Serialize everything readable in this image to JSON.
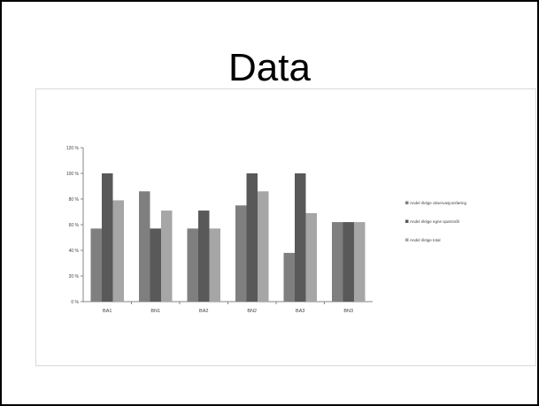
{
  "slide": {
    "title": "Data"
  },
  "chart_data": {
    "type": "bar",
    "categories": [
      "BA1",
      "BN1",
      "BA2",
      "BN2",
      "BA3",
      "BN3"
    ],
    "series": [
      {
        "name": "Andel riktige observasjonsføring",
        "color": "#7f7f7f",
        "values": [
          57,
          86,
          57,
          75,
          38,
          62
        ]
      },
      {
        "name": "Andel riktige egne spørsmål",
        "color": "#595959",
        "values": [
          100,
          57,
          71,
          100,
          100,
          62
        ]
      },
      {
        "name": "Andel riktige total",
        "color": "#a6a6a6",
        "values": [
          79,
          71,
          57,
          86,
          69,
          62
        ]
      }
    ],
    "yticks": [
      "0 %",
      "20 %",
      "40 %",
      "60 %",
      "80 %",
      "100 %",
      "120 %"
    ],
    "ylim": [
      0,
      120
    ],
    "grid": false,
    "legend_position": "right"
  }
}
